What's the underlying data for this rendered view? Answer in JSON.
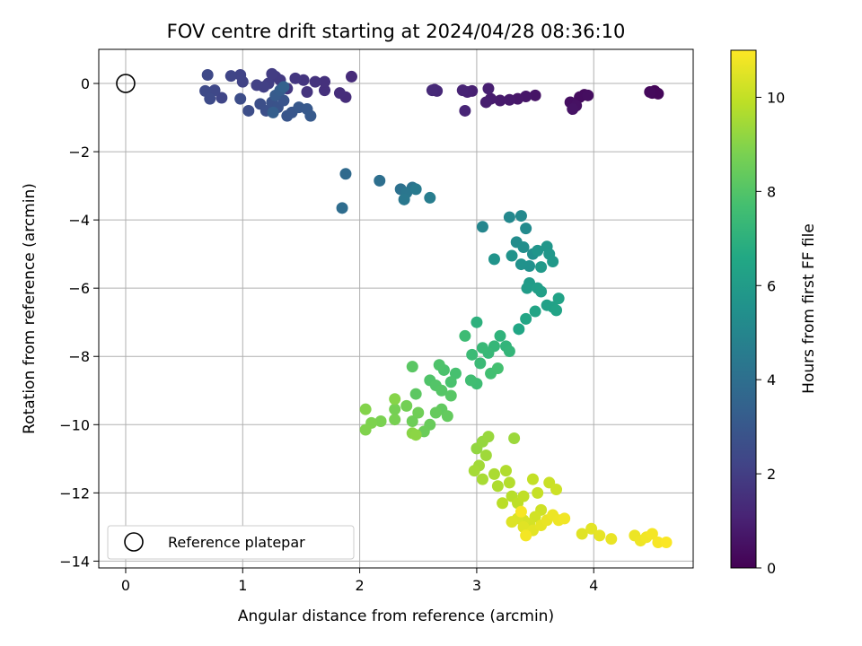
{
  "chart_data": {
    "type": "scatter",
    "title": "FOV centre drift starting at 2024/04/28 08:36:10",
    "xlabel": "Angular distance from reference (arcmin)",
    "ylabel": "Rotation from reference (arcmin)",
    "xlim": [
      -0.23,
      4.85
    ],
    "ylim": [
      -14.2,
      1.0
    ],
    "xticks": [
      "0",
      "1",
      "2",
      "3",
      "4"
    ],
    "yticks": [
      "0",
      "−2",
      "−4",
      "−6",
      "−8",
      "−10",
      "−12",
      "−14"
    ],
    "grid": true,
    "legend": {
      "position": "bottom-left",
      "entries": [
        "Reference platepar"
      ]
    },
    "colorbar": {
      "label": "Hours from first FF file",
      "range": [
        0,
        11
      ],
      "ticks": [
        "0",
        "2",
        "4",
        "6",
        "8",
        "10"
      ],
      "colormap": "viridis"
    },
    "reference_point": {
      "x": 0,
      "y": 0
    },
    "points": [
      [
        4.52,
        -0.22,
        0.1
      ],
      [
        4.5,
        -0.28,
        0.15
      ],
      [
        4.55,
        -0.3,
        0.2
      ],
      [
        4.48,
        -0.25,
        0.25
      ],
      [
        3.92,
        -0.33,
        0.3
      ],
      [
        3.88,
        -0.4,
        0.35
      ],
      [
        3.95,
        -0.35,
        0.4
      ],
      [
        3.8,
        -0.55,
        0.45
      ],
      [
        3.85,
        -0.65,
        0.5
      ],
      [
        3.82,
        -0.75,
        0.55
      ],
      [
        3.5,
        -0.35,
        0.6
      ],
      [
        3.42,
        -0.38,
        0.65
      ],
      [
        3.35,
        -0.45,
        0.7
      ],
      [
        3.28,
        -0.48,
        0.75
      ],
      [
        3.2,
        -0.5,
        0.8
      ],
      [
        3.12,
        -0.45,
        0.85
      ],
      [
        3.08,
        -0.55,
        0.9
      ],
      [
        3.1,
        -0.15,
        0.95
      ],
      [
        2.96,
        -0.22,
        1.0
      ],
      [
        2.92,
        -0.25,
        1.05
      ],
      [
        2.88,
        -0.2,
        1.1
      ],
      [
        2.9,
        -0.8,
        1.15
      ],
      [
        2.64,
        -0.18,
        1.2
      ],
      [
        2.66,
        -0.22,
        1.25
      ],
      [
        2.62,
        -0.2,
        1.3
      ],
      [
        1.93,
        0.2,
        1.35
      ],
      [
        1.88,
        -0.4,
        1.4
      ],
      [
        1.83,
        -0.28,
        1.45
      ],
      [
        1.7,
        -0.2,
        1.5
      ],
      [
        1.7,
        0.05,
        1.55
      ],
      [
        1.62,
        0.05,
        1.6
      ],
      [
        1.55,
        -0.25,
        1.65
      ],
      [
        1.52,
        0.1,
        1.7
      ],
      [
        1.45,
        0.15,
        1.75
      ],
      [
        1.38,
        -0.15,
        1.8
      ],
      [
        1.32,
        0.1,
        1.85
      ],
      [
        1.28,
        0.2,
        1.9
      ],
      [
        1.25,
        0.28,
        1.95
      ],
      [
        1.22,
        0.0,
        2.0
      ],
      [
        1.18,
        -0.1,
        2.05
      ],
      [
        1.12,
        -0.05,
        2.1
      ],
      [
        1.0,
        0.05,
        2.15
      ],
      [
        0.98,
        0.25,
        2.2
      ],
      [
        0.9,
        0.22,
        2.25
      ],
      [
        0.82,
        -0.42,
        2.3
      ],
      [
        0.76,
        -0.2,
        2.35
      ],
      [
        0.7,
        0.25,
        2.4
      ],
      [
        0.68,
        -0.22,
        2.45
      ],
      [
        0.72,
        -0.45,
        2.5
      ],
      [
        0.98,
        -0.45,
        2.55
      ],
      [
        1.05,
        -0.8,
        2.6
      ],
      [
        1.15,
        -0.6,
        2.65
      ],
      [
        1.2,
        -0.8,
        2.7
      ],
      [
        1.25,
        -0.55,
        2.75
      ],
      [
        1.3,
        -0.7,
        2.8
      ],
      [
        1.35,
        -0.5,
        2.85
      ],
      [
        1.38,
        -0.95,
        2.9
      ],
      [
        1.42,
        -0.85,
        2.95
      ],
      [
        1.48,
        -0.7,
        3.0
      ],
      [
        1.55,
        -0.75,
        3.05
      ],
      [
        1.58,
        -0.95,
        3.1
      ],
      [
        1.28,
        -0.35,
        3.15
      ],
      [
        1.32,
        -0.2,
        3.2
      ],
      [
        1.26,
        -0.85,
        3.3
      ],
      [
        1.35,
        -0.1,
        3.4
      ],
      [
        1.88,
        -2.65,
        3.8
      ],
      [
        1.85,
        -3.65,
        3.9
      ],
      [
        2.17,
        -2.85,
        4.0
      ],
      [
        2.35,
        -3.1,
        4.1
      ],
      [
        2.45,
        -3.05,
        4.2
      ],
      [
        2.4,
        -3.2,
        4.3
      ],
      [
        2.38,
        -3.4,
        4.4
      ],
      [
        2.48,
        -3.1,
        4.5
      ],
      [
        2.6,
        -3.35,
        4.6
      ],
      [
        3.05,
        -4.2,
        5.0
      ],
      [
        3.28,
        -3.92,
        5.1
      ],
      [
        3.38,
        -3.88,
        5.15
      ],
      [
        3.42,
        -4.25,
        5.2
      ],
      [
        3.34,
        -4.65,
        5.3
      ],
      [
        3.4,
        -4.8,
        5.35
      ],
      [
        3.48,
        -5.0,
        5.4
      ],
      [
        3.45,
        -5.35,
        5.5
      ],
      [
        3.38,
        -5.3,
        5.55
      ],
      [
        3.3,
        -5.05,
        5.6
      ],
      [
        3.15,
        -5.15,
        5.65
      ],
      [
        3.52,
        -4.9,
        5.7
      ],
      [
        3.6,
        -4.78,
        5.75
      ],
      [
        3.62,
        -5.0,
        5.8
      ],
      [
        3.65,
        -5.22,
        5.85
      ],
      [
        3.55,
        -5.38,
        5.9
      ],
      [
        3.45,
        -5.85,
        6.0
      ],
      [
        3.43,
        -6.0,
        6.05
      ],
      [
        3.52,
        -6.0,
        6.1
      ],
      [
        3.55,
        -6.1,
        6.15
      ],
      [
        3.6,
        -6.5,
        6.2
      ],
      [
        3.65,
        -6.55,
        6.25
      ],
      [
        3.7,
        -6.3,
        6.3
      ],
      [
        3.68,
        -6.65,
        6.35
      ],
      [
        3.5,
        -6.68,
        6.4
      ],
      [
        3.42,
        -6.9,
        6.45
      ],
      [
        3.36,
        -7.2,
        6.5
      ],
      [
        3.0,
        -7.0,
        7.0
      ],
      [
        3.2,
        -7.4,
        7.1
      ],
      [
        3.25,
        -7.7,
        7.15
      ],
      [
        3.28,
        -7.85,
        7.2
      ],
      [
        3.15,
        -7.7,
        7.25
      ],
      [
        3.1,
        -7.9,
        7.3
      ],
      [
        3.05,
        -7.75,
        7.35
      ],
      [
        3.03,
        -8.2,
        7.4
      ],
      [
        2.96,
        -7.95,
        7.45
      ],
      [
        2.9,
        -7.4,
        7.5
      ],
      [
        3.0,
        -8.8,
        7.55
      ],
      [
        2.95,
        -8.7,
        7.6
      ],
      [
        3.12,
        -8.5,
        7.65
      ],
      [
        3.18,
        -8.35,
        7.7
      ],
      [
        2.82,
        -8.5,
        7.75
      ],
      [
        2.78,
        -8.75,
        7.8
      ],
      [
        2.72,
        -8.4,
        7.85
      ],
      [
        2.68,
        -8.25,
        7.9
      ],
      [
        2.6,
        -8.7,
        7.95
      ],
      [
        2.65,
        -8.85,
        8.0
      ],
      [
        2.7,
        -9.0,
        8.05
      ],
      [
        2.78,
        -9.15,
        8.1
      ],
      [
        2.45,
        -8.3,
        8.15
      ],
      [
        2.48,
        -9.1,
        8.2
      ],
      [
        2.7,
        -9.55,
        8.3
      ],
      [
        2.75,
        -9.75,
        8.35
      ],
      [
        2.65,
        -9.65,
        8.4
      ],
      [
        2.6,
        -10.0,
        8.45
      ],
      [
        2.55,
        -10.2,
        8.5
      ],
      [
        2.45,
        -9.9,
        8.55
      ],
      [
        2.5,
        -9.65,
        8.6
      ],
      [
        2.4,
        -9.45,
        8.65
      ],
      [
        2.3,
        -9.55,
        8.7
      ],
      [
        2.3,
        -9.85,
        8.75
      ],
      [
        2.18,
        -9.9,
        8.8
      ],
      [
        2.1,
        -9.95,
        8.85
      ],
      [
        2.05,
        -10.15,
        8.9
      ],
      [
        2.05,
        -9.55,
        8.95
      ],
      [
        2.3,
        -9.25,
        9.0
      ],
      [
        2.45,
        -10.25,
        9.05
      ],
      [
        2.48,
        -10.3,
        9.1
      ],
      [
        3.0,
        -10.7,
        9.2
      ],
      [
        3.05,
        -10.5,
        9.25
      ],
      [
        3.1,
        -10.35,
        9.3
      ],
      [
        3.32,
        -10.4,
        9.35
      ],
      [
        3.08,
        -10.9,
        9.4
      ],
      [
        3.02,
        -11.2,
        9.45
      ],
      [
        2.98,
        -11.35,
        9.5
      ],
      [
        3.05,
        -11.6,
        9.55
      ],
      [
        3.15,
        -11.45,
        9.6
      ],
      [
        3.18,
        -11.8,
        9.65
      ],
      [
        3.25,
        -11.35,
        9.7
      ],
      [
        3.28,
        -11.7,
        9.75
      ],
      [
        3.3,
        -12.1,
        9.8
      ],
      [
        3.22,
        -12.3,
        9.85
      ],
      [
        3.35,
        -12.3,
        9.9
      ],
      [
        3.4,
        -12.1,
        9.95
      ],
      [
        3.48,
        -11.6,
        10.0
      ],
      [
        3.52,
        -12.0,
        10.05
      ],
      [
        3.62,
        -11.7,
        10.1
      ],
      [
        3.68,
        -11.9,
        10.15
      ],
      [
        3.55,
        -12.5,
        10.2
      ],
      [
        3.5,
        -12.7,
        10.25
      ],
      [
        3.45,
        -12.9,
        10.3
      ],
      [
        3.4,
        -12.8,
        10.35
      ],
      [
        3.35,
        -12.75,
        10.4
      ],
      [
        3.3,
        -12.85,
        10.45
      ],
      [
        3.4,
        -13.0,
        10.5
      ],
      [
        3.48,
        -13.1,
        10.55
      ],
      [
        3.55,
        -12.95,
        10.6
      ],
      [
        3.6,
        -12.8,
        10.65
      ],
      [
        3.65,
        -12.65,
        10.7
      ],
      [
        3.7,
        -12.8,
        10.75
      ],
      [
        3.75,
        -12.75,
        10.8
      ],
      [
        3.42,
        -13.25,
        10.85
      ],
      [
        3.38,
        -12.55,
        10.9
      ],
      [
        3.9,
        -13.2,
        10.5
      ],
      [
        3.98,
        -13.05,
        10.55
      ],
      [
        4.05,
        -13.25,
        10.6
      ],
      [
        4.15,
        -13.35,
        10.65
      ],
      [
        4.35,
        -13.25,
        10.7
      ],
      [
        4.4,
        -13.4,
        10.75
      ],
      [
        4.45,
        -13.3,
        10.8
      ],
      [
        4.5,
        -13.2,
        10.85
      ],
      [
        4.55,
        -13.45,
        10.9
      ],
      [
        4.62,
        -13.45,
        10.95
      ]
    ]
  }
}
